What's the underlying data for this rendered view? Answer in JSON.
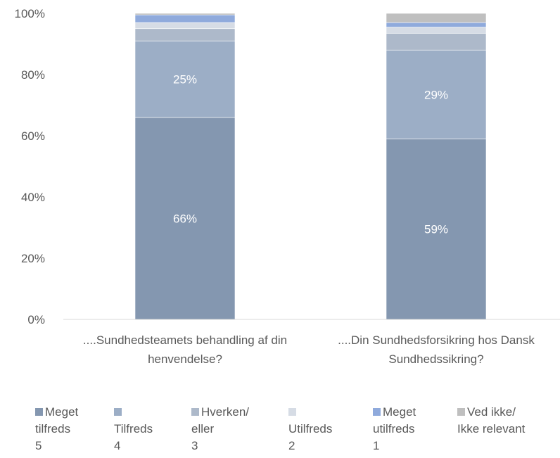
{
  "chart_data": {
    "type": "bar",
    "stacked": true,
    "percent_stacked": true,
    "categories": [
      "....Sundhedsteamets behandling af din henvendelse?",
      "....Din Sundhedsforsikring hos Dansk Sundhedssikring?"
    ],
    "category_lines": [
      [
        "....Sundhedsteamets behandling af din",
        "henvendelse?"
      ],
      [
        "....Din Sundhedsforsikring hos Dansk",
        "Sundhedssikring?"
      ]
    ],
    "series": [
      {
        "name": "Meget tilfreds 5",
        "label_lines": [
          "Meget",
          "tilfreds",
          "5"
        ],
        "color": "#8497b0",
        "values": [
          66,
          59
        ],
        "data_labels": [
          "66%",
          "59%"
        ]
      },
      {
        "name": "Tilfreds 4",
        "label_lines": [
          "",
          "Tilfreds",
          "4"
        ],
        "color": "#9caec6",
        "values": [
          25,
          29
        ],
        "data_labels": [
          "25%",
          "29%"
        ]
      },
      {
        "name": "Hverken/ eller 3",
        "label_lines": [
          "Hverken/",
          "eller",
          "3"
        ],
        "color": "#adb9ca",
        "values": [
          4,
          5.5
        ],
        "data_labels": [
          "",
          ""
        ]
      },
      {
        "name": "Utilfreds 2",
        "label_lines": [
          "",
          "Utilfreds",
          "2"
        ],
        "color": "#d6dce5",
        "values": [
          2,
          2
        ],
        "data_labels": [
          "",
          ""
        ]
      },
      {
        "name": "Meget utilfreds 1",
        "label_lines": [
          "Meget",
          "utilfreds",
          "1"
        ],
        "color": "#8faadc",
        "values": [
          2.5,
          1.5
        ],
        "data_labels": [
          "",
          ""
        ]
      },
      {
        "name": "Ved ikke/ Ikke relevant",
        "label_lines": [
          "Ved ikke/",
          "Ikke relevant",
          ""
        ],
        "color": "#bfbfbf",
        "values": [
          0.5,
          3
        ],
        "data_labels": [
          "",
          ""
        ]
      }
    ],
    "ylim": [
      0,
      100
    ],
    "yticks": [
      "0%",
      "20%",
      "40%",
      "60%",
      "80%",
      "100%"
    ],
    "ytick_values": [
      0,
      20,
      40,
      60,
      80,
      100
    ],
    "legend_position": "bottom",
    "grid": false
  }
}
